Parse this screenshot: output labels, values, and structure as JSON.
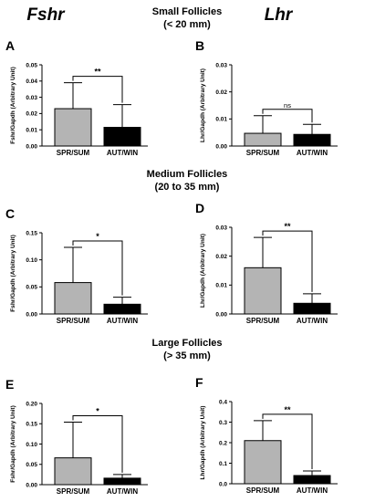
{
  "colors": {
    "spr_sum": "#b4b4b4",
    "aut_win": "#000000"
  },
  "column_headers": {
    "left": "Fshr",
    "right": "Lhr"
  },
  "sections": [
    {
      "title": "Small Follicles",
      "subtitle": "(< 20 mm)"
    },
    {
      "title": "Medium Follicles",
      "subtitle": "(20 to 35 mm)"
    },
    {
      "title": "Large Follicles",
      "subtitle": "(> 35 mm)"
    }
  ],
  "chart_data": [
    {
      "panel": "A",
      "type": "bar",
      "ylabel": "Fshr/Gapdh (Arbitrary Unit)",
      "categories": [
        "SPR/SUM",
        "AUT/WIN"
      ],
      "values": [
        0.023,
        0.0115
      ],
      "errors": [
        0.016,
        0.014
      ],
      "ylim": [
        0,
        0.05
      ],
      "yticks": [
        "0.00",
        "0.01",
        "0.02",
        "0.03",
        "0.04",
        "0.05"
      ],
      "significance": "**"
    },
    {
      "panel": "B",
      "type": "bar",
      "ylabel": "Lhr/Gapdh (Arbitrary Unit)",
      "categories": [
        "SPR/SUM",
        "AUT/WIN"
      ],
      "values": [
        0.0047,
        0.0043
      ],
      "errors": [
        0.0065,
        0.0037
      ],
      "ylim": [
        0,
        0.03
      ],
      "yticks": [
        "0.00",
        "0.01",
        "0.02",
        "0.03"
      ],
      "significance": "ns"
    },
    {
      "panel": "C",
      "type": "bar",
      "ylabel": "Fshr/Gapdh (Arbitrary Unit)",
      "categories": [
        "SPR/SUM",
        "AUT/WIN"
      ],
      "values": [
        0.058,
        0.018
      ],
      "errors": [
        0.065,
        0.013
      ],
      "ylim": [
        0,
        0.15
      ],
      "yticks": [
        "0.00",
        "0.05",
        "0.10",
        "0.15"
      ],
      "significance": "*"
    },
    {
      "panel": "D",
      "type": "bar",
      "ylabel": "Lhr/Gapdh (Arbitrary Unit)",
      "categories": [
        "SPR/SUM",
        "AUT/WIN"
      ],
      "values": [
        0.016,
        0.0037
      ],
      "errors": [
        0.0105,
        0.0033
      ],
      "ylim": [
        0,
        0.03
      ],
      "yticks": [
        "0.00",
        "0.01",
        "0.02",
        "0.03"
      ],
      "significance": "**"
    },
    {
      "panel": "E",
      "type": "bar",
      "ylabel": "Fshr/Gapdh (Arbitrary Unit)",
      "categories": [
        "SPR/SUM",
        "AUT/WIN"
      ],
      "values": [
        0.066,
        0.016
      ],
      "errors": [
        0.088,
        0.009
      ],
      "ylim": [
        0,
        0.2
      ],
      "yticks": [
        "0.00",
        "0.05",
        "0.10",
        "0.15",
        "0.20"
      ],
      "significance": "*"
    },
    {
      "panel": "F",
      "type": "bar",
      "ylabel": "Lhr/Gapdh (Arbitrary Unit)",
      "categories": [
        "SPR/SUM",
        "AUT/WIN"
      ],
      "values": [
        0.21,
        0.04
      ],
      "errors": [
        0.097,
        0.022
      ],
      "ylim": [
        0,
        0.4
      ],
      "yticks": [
        "0.0",
        "0.1",
        "0.2",
        "0.3",
        "0.4"
      ],
      "significance": "**"
    }
  ]
}
